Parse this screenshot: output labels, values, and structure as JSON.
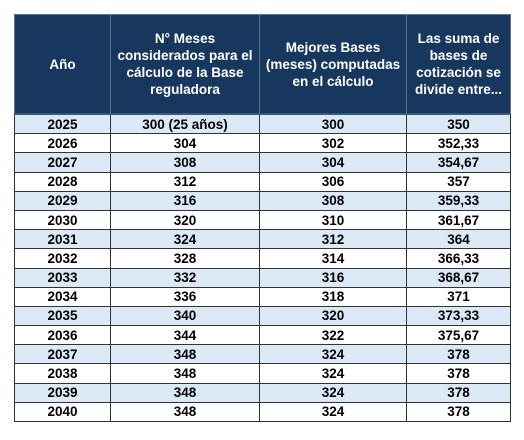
{
  "table": {
    "headers": [
      "Año",
      "N° Meses considerados para el cálculo de la Base reguladora",
      "Mejores Bases (meses) computadas en el cálculo",
      "Las suma de bases de cotización se divide entre..."
    ],
    "rows": [
      [
        "2025",
        "300 (25 años)",
        "300",
        "350"
      ],
      [
        "2026",
        "304",
        "302",
        "352,33"
      ],
      [
        "2027",
        "308",
        "304",
        "354,67"
      ],
      [
        "2028",
        "312",
        "306",
        "357"
      ],
      [
        "2029",
        "316",
        "308",
        "359,33"
      ],
      [
        "2030",
        "320",
        "310",
        "361,67"
      ],
      [
        "2031",
        "324",
        "312",
        "364"
      ],
      [
        "2032",
        "328",
        "314",
        "366,33"
      ],
      [
        "2033",
        "332",
        "316",
        "368,67"
      ],
      [
        "2034",
        "336",
        "318",
        "371"
      ],
      [
        "2035",
        "340",
        "320",
        "373,33"
      ],
      [
        "2036",
        "344",
        "322",
        "375,67"
      ],
      [
        "2037",
        "348",
        "324",
        "378"
      ],
      [
        "2038",
        "348",
        "324",
        "378"
      ],
      [
        "2039",
        "348",
        "324",
        "378"
      ],
      [
        "2040",
        "348",
        "324",
        "378"
      ]
    ]
  },
  "colors": {
    "header_bg": "#17375e",
    "header_text": "#ffffff",
    "row_alt_bg": "#dbe9f6",
    "row_bg": "#ffffff"
  }
}
